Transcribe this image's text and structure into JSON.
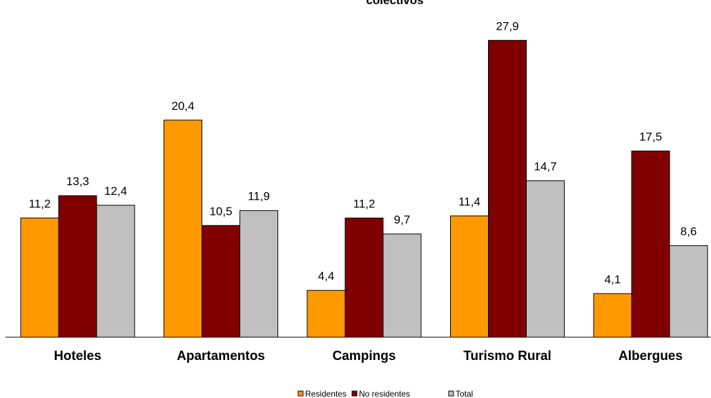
{
  "chart_data": {
    "type": "bar",
    "title": "colectivos",
    "xlabel": "",
    "ylabel": "",
    "categories": [
      "Hoteles",
      "Apartamentos",
      "Campings",
      "Turismo Rural",
      "Albergues"
    ],
    "series": [
      {
        "name": "Residentes",
        "color": "#ff9900",
        "values": [
          11.2,
          20.4,
          4.4,
          11.4,
          4.1
        ],
        "labels": [
          "11,2",
          "20,4",
          "4,4",
          "11,4",
          "4,1"
        ]
      },
      {
        "name": "No residentes",
        "color": "#800000",
        "values": [
          13.3,
          10.5,
          11.2,
          27.9,
          17.5
        ],
        "labels": [
          "13,3",
          "10,5",
          "11,2",
          "27,9",
          "17,5"
        ]
      },
      {
        "name": "Total",
        "color": "#c0c0c0",
        "values": [
          12.4,
          11.9,
          9.7,
          14.7,
          8.6
        ],
        "labels": [
          "12,4",
          "11,9",
          "9,7",
          "14,7",
          "8,6"
        ]
      }
    ],
    "ylim": [
      0,
      30
    ],
    "grid": false,
    "legend": "bottom-center"
  }
}
